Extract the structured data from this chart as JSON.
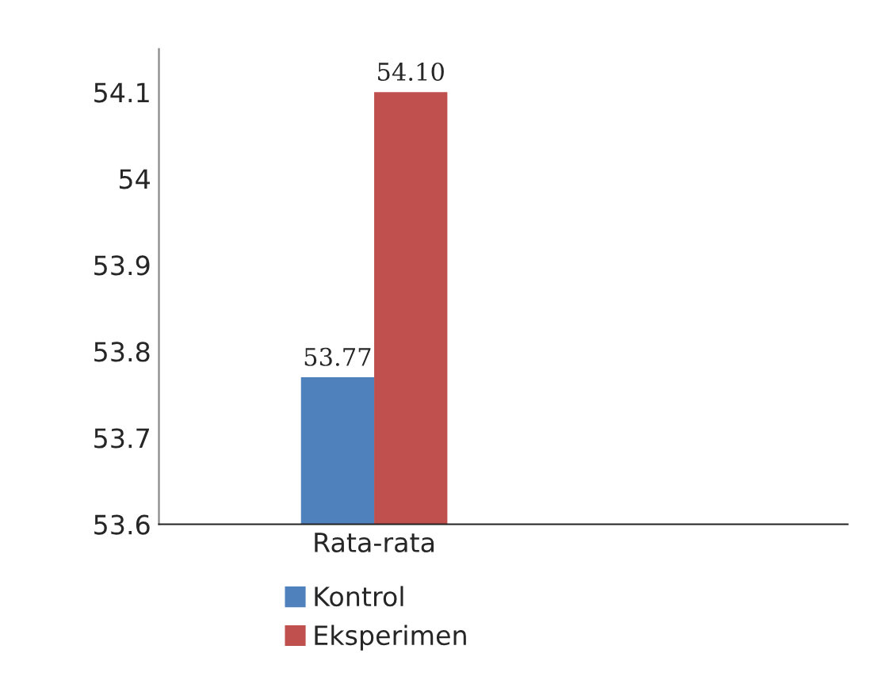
{
  "chart_data": {
    "type": "bar",
    "categories": [
      "Rata-rata"
    ],
    "series": [
      {
        "name": "Kontrol",
        "color": "#4f81bd",
        "values": [
          53.77
        ],
        "value_labels": [
          "53.77"
        ]
      },
      {
        "name": "Eksperimen",
        "color": "#c0504d",
        "values": [
          54.1
        ],
        "value_labels": [
          "54.10"
        ]
      }
    ],
    "ylim": [
      53.6,
      54.15
    ],
    "yticks": [
      53.6,
      53.7,
      53.8,
      53.9,
      54,
      54.1
    ],
    "grid": false,
    "legend": "bottom"
  }
}
